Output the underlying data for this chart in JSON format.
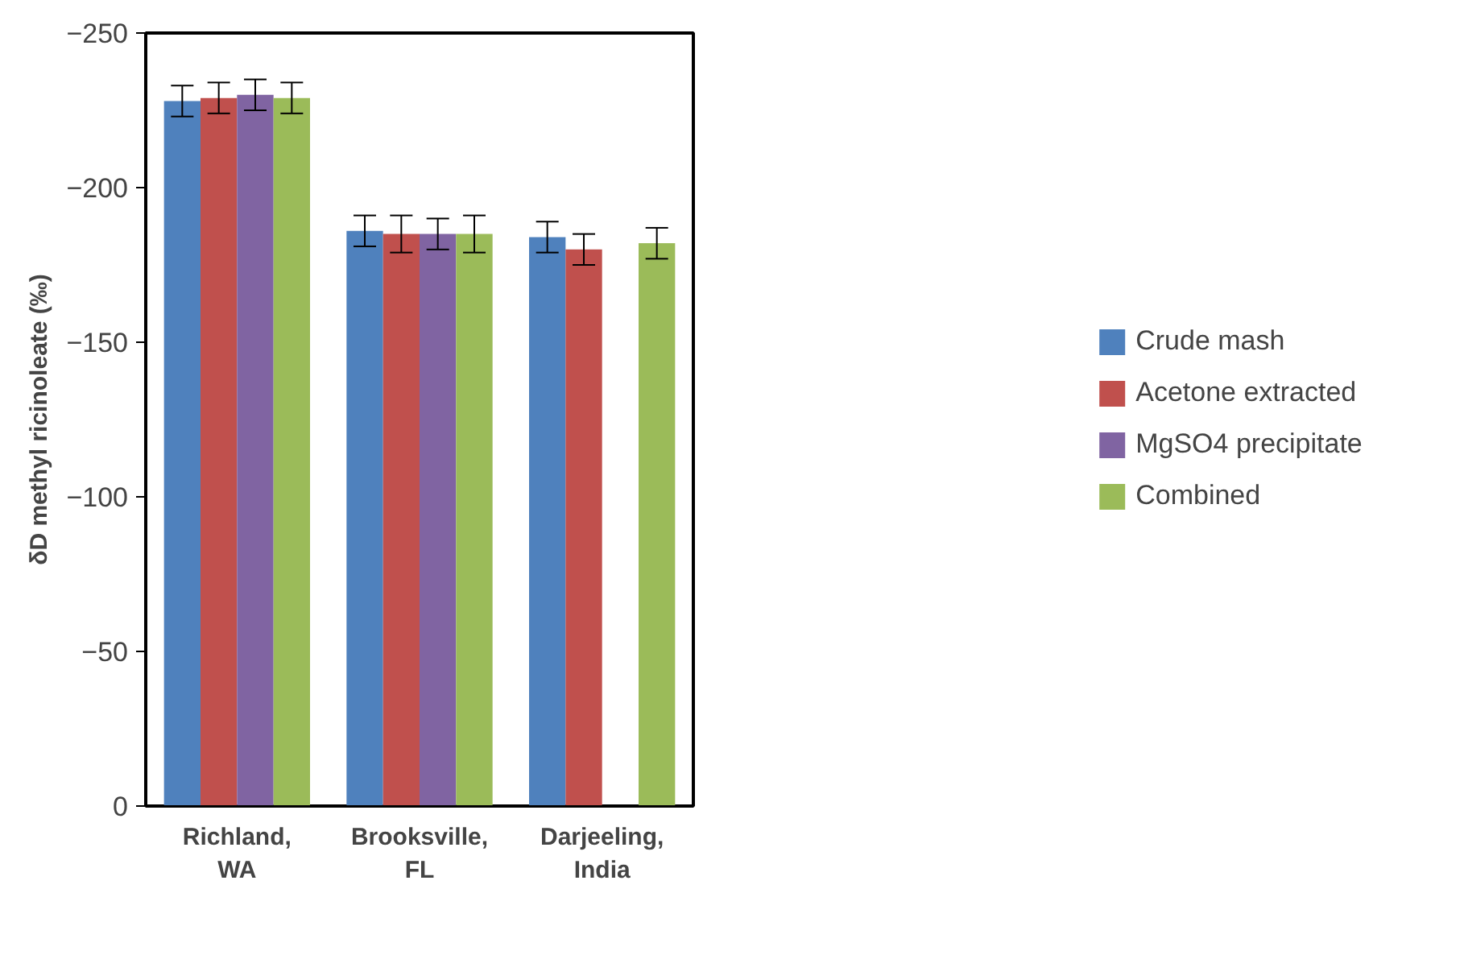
{
  "chart_data": {
    "type": "bar",
    "ylabel": "δD methyl ricinoleate (‰)",
    "categories": [
      "Richland,\nWA",
      "Brooksville,\nFL",
      "Darjeeling,\nIndia"
    ],
    "series": [
      {
        "name": "Crude mash",
        "color": "#4f81bd",
        "values": [
          -228,
          -186,
          -184
        ],
        "errors": [
          5,
          5,
          5
        ]
      },
      {
        "name": "Acetone extracted",
        "color": "#c0504d",
        "values": [
          -229,
          -185,
          -180
        ],
        "errors": [
          5,
          6,
          5
        ]
      },
      {
        "name": "MgSO4 precipitate",
        "color": "#8064a2",
        "values": [
          -230,
          -185,
          null
        ],
        "errors": [
          5,
          5,
          null
        ]
      },
      {
        "name": "Combined",
        "color": "#9bbb59",
        "values": [
          -229,
          -185,
          -182
        ],
        "errors": [
          5,
          6,
          5
        ]
      }
    ],
    "ylim": [
      0,
      -250
    ],
    "yticks": [
      0,
      -50,
      -100,
      -150,
      -200,
      -250
    ],
    "grid": false,
    "legend": "right"
  }
}
